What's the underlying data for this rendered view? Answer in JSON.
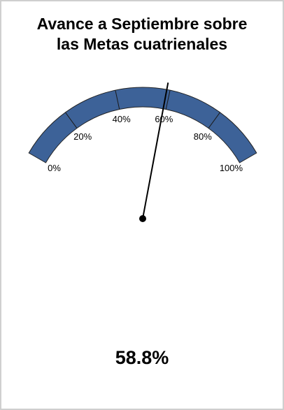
{
  "title": {
    "line1": "Avance a Septiembre sobre",
    "line2": "las Metas cuatrienales"
  },
  "chart_data": {
    "type": "gauge",
    "value": 58.8,
    "value_label": "58.8%",
    "range": [
      0,
      100
    ],
    "ticks": [
      0,
      20,
      40,
      60,
      80,
      100
    ],
    "tick_labels": [
      "0%",
      "20%",
      "40%",
      "60%",
      "80%",
      "100%"
    ],
    "band_color": "#3d6298",
    "needle_color": "#000000"
  }
}
